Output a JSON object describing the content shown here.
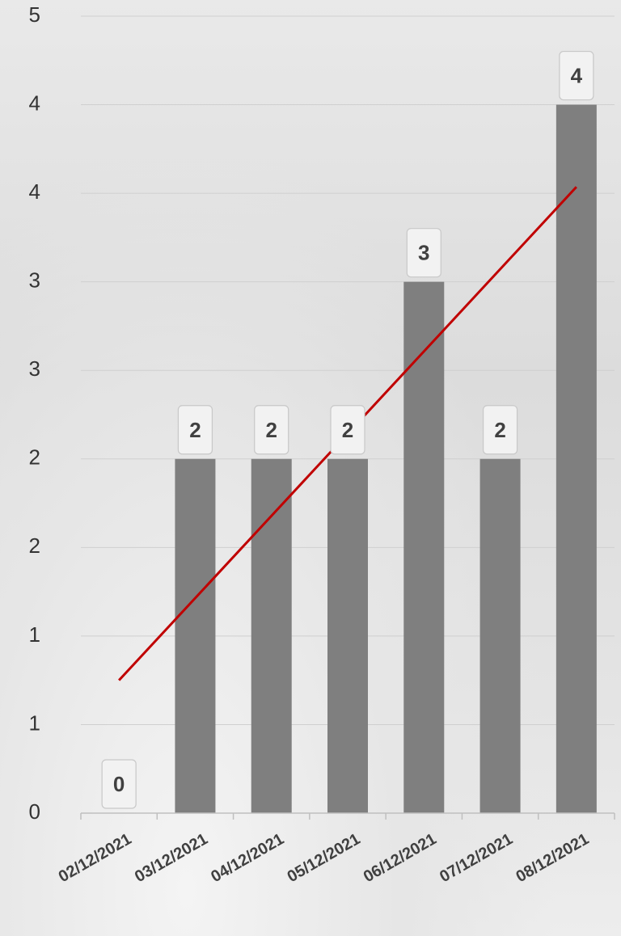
{
  "chart_data": {
    "type": "bar",
    "title": "",
    "xlabel": "",
    "ylabel": "",
    "categories": [
      "02/12/2021",
      "03/12/2021",
      "04/12/2021",
      "05/12/2021",
      "06/12/2021",
      "07/12/2021",
      "08/12/2021"
    ],
    "series": [
      {
        "values": [
          0,
          2,
          2,
          2,
          3,
          2,
          4
        ],
        "data_labels": [
          "0",
          "2",
          "2",
          "2",
          "3",
          "2",
          "4"
        ],
        "color": "#7f7f7f"
      }
    ],
    "trendline": {
      "type": "linear",
      "color": "#c00000"
    },
    "ylim": [
      0,
      4.5
    ],
    "y_tick_values": [
      0,
      0.5,
      1,
      1.5,
      2,
      2.5,
      3,
      3.5,
      4,
      4.5
    ],
    "y_tick_labels": [
      "0",
      "1",
      "1",
      "2",
      "2",
      "3",
      "3",
      "4",
      "4",
      "5"
    ],
    "grid": true,
    "legend": "none"
  }
}
